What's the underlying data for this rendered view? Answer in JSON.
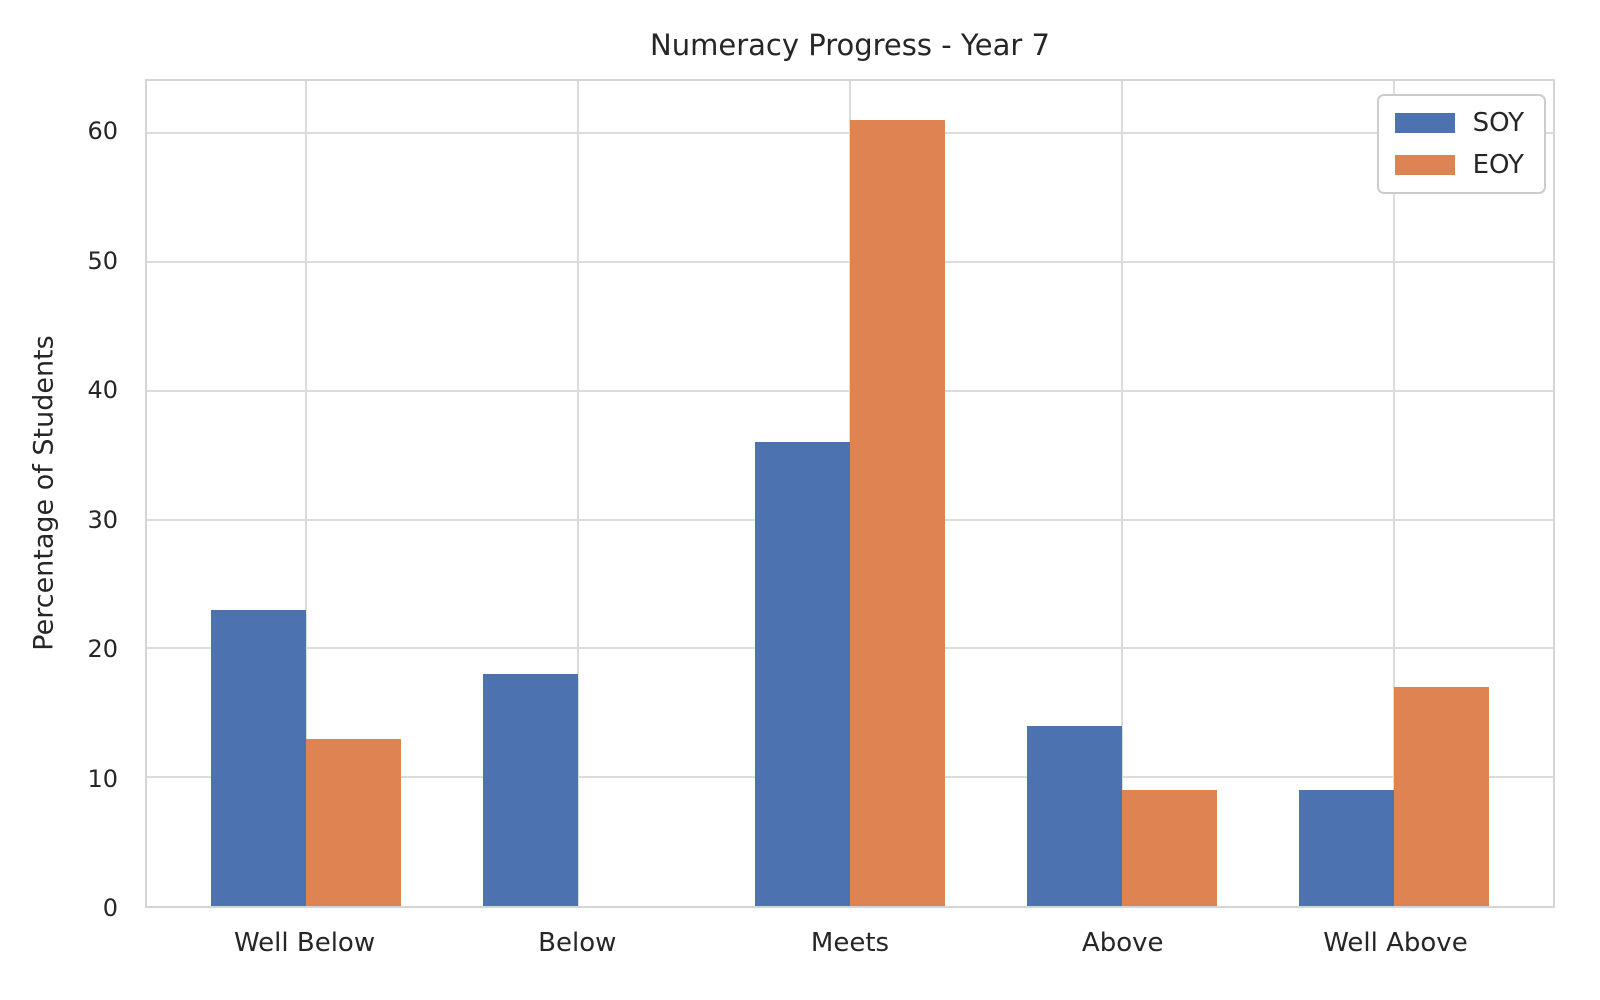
{
  "chart_data": {
    "type": "bar",
    "title": "Numeracy Progress - Year 7",
    "xlabel": "",
    "ylabel": "Percentage of Students",
    "categories": [
      "Well Below",
      "Below",
      "Meets",
      "Above",
      "Well Above"
    ],
    "series": [
      {
        "name": "SOY",
        "color": "#4C72B0",
        "values": [
          23,
          18,
          36,
          14,
          9
        ]
      },
      {
        "name": "EOY",
        "color": "#DD8452",
        "values": [
          13,
          0,
          61,
          9,
          17
        ]
      }
    ],
    "yticks": [
      0,
      10,
      20,
      30,
      40,
      50,
      60
    ],
    "ylim": [
      0,
      64.05
    ],
    "bar_width": 0.35,
    "x_margin": 0.585,
    "grid": "both",
    "grid_color": "#dcdcdc",
    "spine_color": "#d5d5d5",
    "background_color": "#ffffff",
    "text_color": "#262626",
    "legend_position": "upper right"
  }
}
